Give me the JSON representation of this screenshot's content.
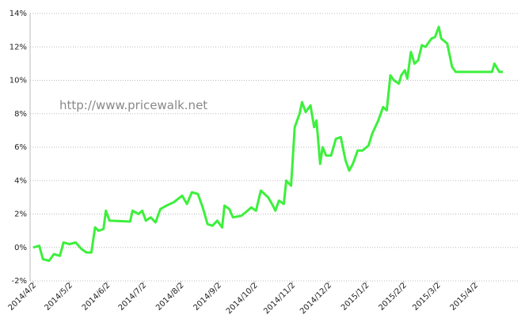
{
  "chart_data": {
    "type": "line",
    "annotation": "http://www.pricewalk.net",
    "x": [
      "2014/4/2",
      "2014/4/7",
      "2014/4/10",
      "2014/4/15",
      "2014/4/19",
      "2014/4/24",
      "2014/4/27",
      "2014/5/2",
      "2014/5/7",
      "2014/5/12",
      "2014/5/16",
      "2014/5/20",
      "2014/5/23",
      "2014/5/26",
      "2014/5/30",
      "2014/6/1",
      "2014/6/4",
      "2014/6/21",
      "2014/6/23",
      "2014/6/28",
      "2014/7/1",
      "2014/7/4",
      "2014/7/8",
      "2014/7/12",
      "2014/7/16",
      "2014/7/21",
      "2014/7/27",
      "2014/8/3",
      "2014/8/7",
      "2014/8/11",
      "2014/8/16",
      "2014/8/20",
      "2014/8/24",
      "2014/8/28",
      "2014/9/1",
      "2014/9/5",
      "2014/9/7",
      "2014/9/11",
      "2014/9/14",
      "2014/9/21",
      "2014/9/26",
      "2014/9/29",
      "2014/10/3",
      "2014/10/7",
      "2014/10/13",
      "2014/10/17",
      "2014/10/19",
      "2014/10/22",
      "2014/10/26",
      "2014/10/28",
      "2014/11/1",
      "2014/11/4",
      "2014/11/8",
      "2014/11/10",
      "2014/11/13",
      "2014/11/17",
      "2014/11/20",
      "2014/11/22",
      "2014/11/25",
      "2014/11/27",
      "2014/11/30",
      "2014/12/4",
      "2014/12/8",
      "2014/12/12",
      "2014/12/16",
      "2014/12/19",
      "2014/12/22",
      "2014/12/26",
      "2014/12/30",
      "2015/1/4",
      "2015/1/7",
      "2015/1/12",
      "2015/1/16",
      "2015/1/19",
      "2015/1/22",
      "2015/1/25",
      "2015/1/29",
      "2015/1/31",
      "2015/2/3",
      "2015/2/5",
      "2015/2/8",
      "2015/2/11",
      "2015/2/14",
      "2015/2/17",
      "2015/2/20",
      "2015/2/25",
      "2015/2/28",
      "2015/3/3",
      "2015/3/5",
      "2015/3/10",
      "2015/3/14",
      "2015/3/17",
      "2015/4/16",
      "2015/4/18",
      "2015/4/22",
      "2015/4/25"
    ],
    "series": [
      {
        "color": "#3cf03c",
        "values": [
          0,
          0.1,
          -0.7,
          -0.8,
          -0.4,
          -0.5,
          0.3,
          0.2,
          0.3,
          -0.1,
          -0.3,
          -0.3,
          1.2,
          1.0,
          1.1,
          2.2,
          1.6,
          1.55,
          2.2,
          2.0,
          2.2,
          1.6,
          1.8,
          1.5,
          2.3,
          2.5,
          2.7,
          3.1,
          2.6,
          3.3,
          3.2,
          2.4,
          1.4,
          1.3,
          1.6,
          1.2,
          2.5,
          2.3,
          1.8,
          1.9,
          2.2,
          2.4,
          2.2,
          3.4,
          3.0,
          2.5,
          2.2,
          2.8,
          2.6,
          4.0,
          3.7,
          7.2,
          8.0,
          8.7,
          8.1,
          8.5,
          7.2,
          7.6,
          5.0,
          6.0,
          5.5,
          5.5,
          6.5,
          6.6,
          5.2,
          4.6,
          5.0,
          5.8,
          5.8,
          6.1,
          6.8,
          7.6,
          8.4,
          8.2,
          10.3,
          10.0,
          9.8,
          10.3,
          10.6,
          10.1,
          11.7,
          11.0,
          11.2,
          12.1,
          12.0,
          12.5,
          12.6,
          13.2,
          12.5,
          12.2,
          10.8,
          10.5,
          10.5,
          11.0,
          10.5,
          10.5
        ]
      }
    ],
    "xlim": [
      "2014/4/2",
      "2015/5/8"
    ],
    "xticks": [
      "2014/4/2",
      "2014/5/2",
      "2014/6/2",
      "2014/7/2",
      "2014/8/2",
      "2014/9/2",
      "2014/10/2",
      "2014/11/2",
      "2014/12/2",
      "2015/1/2",
      "2015/2/2",
      "2015/3/2",
      "2015/4/2"
    ],
    "ylim": [
      -2,
      14
    ],
    "yticks": [
      {
        "value": -2,
        "label": "-2%"
      },
      {
        "value": 0,
        "label": "0%"
      },
      {
        "value": 2,
        "label": "2%"
      },
      {
        "value": 4,
        "label": "4%"
      },
      {
        "value": 6,
        "label": "6%"
      },
      {
        "value": 8,
        "label": "8%"
      },
      {
        "value": 10,
        "label": "10%"
      },
      {
        "value": 12,
        "label": "12%"
      },
      {
        "value": 14,
        "label": "14%"
      }
    ],
    "grid": true
  }
}
